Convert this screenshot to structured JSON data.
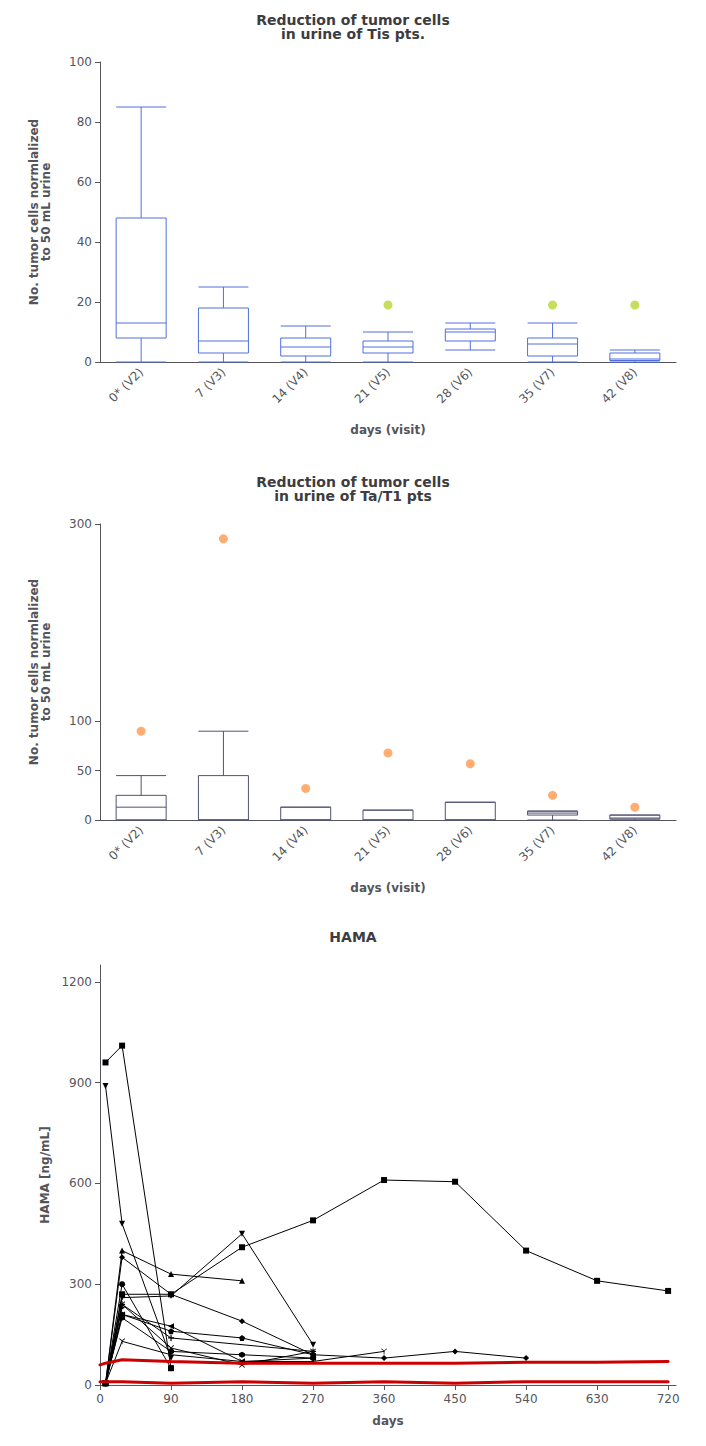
{
  "chart_data": [
    {
      "type": "boxplot",
      "title": "Reduction of tumor cells\nin urine of Tis pts.",
      "xlabel": "days (visit)",
      "ylabel": "No. tumor cells normlalized\nto 50 mL urine",
      "categories": [
        "0* (V2)",
        "7 (V3)",
        "14 (V4)",
        "21 (V5)",
        "28 (V6)",
        "35 (V7)",
        "42 (V8)"
      ],
      "medians": [
        13,
        7,
        5,
        5,
        10,
        6,
        1
      ],
      "q1": [
        8,
        3,
        2,
        3,
        7,
        2,
        0.5
      ],
      "q3": [
        48,
        18,
        8,
        7,
        11,
        8,
        3
      ],
      "whisker_low": [
        0,
        0,
        0,
        0,
        4,
        0,
        0
      ],
      "whisker_high": [
        85,
        25,
        12,
        10,
        13,
        13,
        4
      ],
      "outliers": [
        {
          "category": "21 (V5)",
          "value": 19
        },
        {
          "category": "35 (V7)",
          "value": 19
        },
        {
          "category": "42 (V8)",
          "value": 19
        }
      ],
      "ylim": [
        0,
        100
      ],
      "yticks": [
        0,
        20,
        40,
        60,
        80,
        100
      ],
      "grid": false
    },
    {
      "type": "boxplot",
      "title": "Reduction of tumor cells\nin urine of Ta/T1 pts",
      "xlabel": "days (visit)",
      "ylabel": "No. tumor cells normlalized\nto 50 mL urine",
      "categories": [
        "0* (V2)",
        "7 (V3)",
        "14 (V4)",
        "21 (V5)",
        "28 (V6)",
        "35 (V7)",
        "42 (V8)"
      ],
      "medians": [
        13,
        0,
        0,
        0,
        0,
        7,
        2
      ],
      "q1": [
        0,
        0,
        0,
        0,
        0,
        5,
        1
      ],
      "q3": [
        25,
        45,
        13,
        10,
        18,
        9,
        5
      ],
      "whisker_low": [
        0,
        0,
        0,
        0,
        0,
        0,
        0
      ],
      "whisker_high": [
        45,
        90,
        13,
        10,
        18,
        9,
        5
      ],
      "outliers": [
        {
          "category": "0* (V2)",
          "value": 90
        },
        {
          "category": "7 (V3)",
          "value": 285
        },
        {
          "category": "14 (V4)",
          "value": 32
        },
        {
          "category": "21 (V5)",
          "value": 68
        },
        {
          "category": "28 (V6)",
          "value": 57
        },
        {
          "category": "35 (V7)",
          "value": 25
        },
        {
          "category": "42 (V8)",
          "value": 13
        }
      ],
      "ylim": [
        0,
        300
      ],
      "yticks": [
        0,
        50,
        100,
        300
      ],
      "grid": false
    },
    {
      "type": "line",
      "title": "HAMA",
      "xlabel": "days",
      "ylabel": "HAMA [ng/mL]",
      "xlim": [
        0,
        730
      ],
      "xticks": [
        0,
        90,
        180,
        270,
        360,
        450,
        540,
        630,
        720
      ],
      "ylim": [
        0,
        1250
      ],
      "yticks": [
        0,
        300,
        600,
        900,
        1200
      ],
      "grid": false,
      "series": [
        {
          "x": [
            7,
            28,
            90
          ],
          "values": [
            960,
            1010,
            50
          ],
          "color": "#000000",
          "marker": "square"
        },
        {
          "x": [
            7,
            28,
            90
          ],
          "values": [
            890,
            480,
            80
          ],
          "color": "#000000",
          "marker": "triangle_down"
        },
        {
          "x": [
            7,
            28,
            90,
            180,
            270,
            360,
            450,
            540,
            630,
            720
          ],
          "values": [
            5,
            270,
            270,
            410,
            490,
            610,
            605,
            400,
            310,
            280
          ],
          "color": "#000000",
          "marker": "square"
        },
        {
          "x": [
            7,
            28,
            90,
            180,
            270
          ],
          "values": [
            5,
            260,
            265,
            450,
            120
          ],
          "color": "#000000",
          "marker": "triangle_down"
        },
        {
          "x": [
            7,
            28,
            90,
            180
          ],
          "values": [
            5,
            400,
            330,
            310
          ],
          "color": "#000000",
          "marker": "triangle_up"
        },
        {
          "x": [
            7,
            28,
            90,
            180,
            270,
            360,
            450,
            540
          ],
          "values": [
            5,
            380,
            270,
            190,
            90,
            80,
            100,
            80
          ],
          "color": "#000000",
          "marker": "diamond"
        },
        {
          "x": [
            7,
            28,
            90
          ],
          "values": [
            5,
            300,
            50
          ],
          "color": "#000000",
          "marker": "circle"
        },
        {
          "x": [
            7,
            28,
            90,
            270
          ],
          "values": [
            5,
            240,
            140,
            100
          ],
          "color": "#000000",
          "marker": "plus"
        },
        {
          "x": [
            7,
            28,
            90,
            180,
            270
          ],
          "values": [
            5,
            240,
            110,
            60,
            100
          ],
          "color": "#000000",
          "marker": "x"
        },
        {
          "x": [
            7,
            28,
            90,
            180,
            270
          ],
          "values": [
            5,
            210,
            160,
            140,
            90
          ],
          "color": "#000000",
          "marker": "pentagon"
        },
        {
          "x": [
            7,
            28,
            90,
            180,
            270
          ],
          "values": [
            5,
            210,
            175,
            70,
            80
          ],
          "color": "#000000",
          "marker": "triangle_left"
        },
        {
          "x": [
            7,
            28
          ],
          "values": [
            5,
            230
          ],
          "color": "#000000",
          "marker": "triangle_right"
        },
        {
          "x": [
            7,
            28,
            90,
            180,
            270
          ],
          "values": [
            5,
            200,
            100,
            90,
            80
          ],
          "color": "#000000",
          "marker": "hexagon"
        },
        {
          "x": [
            7,
            28,
            90,
            180,
            270,
            360
          ],
          "values": [
            5,
            130,
            90,
            70,
            70,
            100
          ],
          "color": "#000000",
          "marker": "tri_down"
        },
        {
          "x": [
            0,
            7,
            28,
            90,
            180,
            270,
            360,
            450,
            540,
            630,
            720
          ],
          "values": [
            60,
            65,
            75,
            70,
            65,
            65,
            65,
            65,
            68,
            68,
            70
          ],
          "color": "#cc0000"
        },
        {
          "x": [
            0,
            7,
            28,
            90,
            180,
            270,
            360,
            450,
            540,
            630,
            720
          ],
          "values": [
            10,
            10,
            10,
            5,
            10,
            5,
            10,
            5,
            10,
            10,
            10
          ],
          "color": "#cc0000"
        }
      ]
    }
  ]
}
